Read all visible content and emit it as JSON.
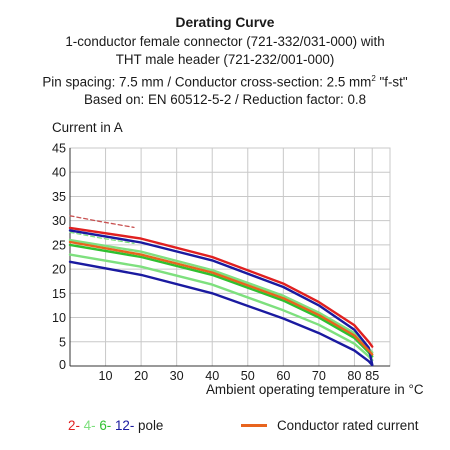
{
  "chart_data": {
    "type": "line",
    "title": "Derating Curve",
    "subtitle": [
      "1-conductor female connector (721-332/031-000) with",
      "THT male header (721-232/001-000)",
      "Pin spacing: 7.5 mm / Conductor cross-section: 2.5 mm",
      "Based on: EN 60512-5-2 / Reduction factor: 0.8"
    ],
    "subtitle_sup": "2",
    "subtitle_suffix": " \"f-st\"",
    "ylabel": "Current in A",
    "xlabel": "Ambient operating temperature in °C",
    "xlim": [
      0,
      90
    ],
    "ylim": [
      0,
      45
    ],
    "xticks": [
      10,
      20,
      30,
      40,
      50,
      60,
      70,
      80,
      85
    ],
    "yticks": [
      5,
      10,
      15,
      20,
      25,
      30,
      35,
      40,
      45
    ],
    "grid": true,
    "colors": {
      "red": "#e02020",
      "light_green": "#7ee07e",
      "green": "#2fc02f",
      "blue": "#1a1aa0",
      "orange": "#e8641e",
      "grid": "#c8c8c8",
      "dashed": "#c85050"
    },
    "series": [
      {
        "pole": "2",
        "color": "red",
        "kind": "solid",
        "x": [
          0,
          20,
          40,
          60,
          70,
          80,
          84,
          85
        ],
        "y": [
          28.5,
          26.3,
          22.5,
          17.0,
          13.2,
          8.4,
          5.0,
          4.0
        ]
      },
      {
        "pole": "2",
        "color": "dashed",
        "kind": "dashed",
        "x": [
          0,
          8,
          18
        ],
        "y": [
          31.0,
          29.9,
          28.6
        ]
      },
      {
        "pole": "4",
        "color": "light_green",
        "kind": "solid",
        "x": [
          0,
          20,
          40,
          60,
          70,
          80,
          84,
          85
        ],
        "y": [
          26.0,
          23.6,
          19.8,
          14.5,
          11.0,
          6.8,
          3.6,
          2.8
        ]
      },
      {
        "pole": "4",
        "color": "light_green",
        "kind": "dashed",
        "x": [
          0,
          8,
          18
        ],
        "y": [
          27.6,
          26.5,
          25.3
        ]
      },
      {
        "pole": "6",
        "color": "green",
        "kind": "solid",
        "x": [
          0,
          20,
          40,
          60,
          70,
          80,
          84,
          85
        ],
        "y": [
          25.0,
          22.5,
          18.8,
          13.5,
          10.0,
          5.8,
          2.8,
          2.0
        ]
      },
      {
        "pole": "6",
        "color": "light_green",
        "kind": "solid",
        "x": [
          0,
          20,
          40,
          60,
          70,
          80,
          84,
          85
        ],
        "y": [
          23.0,
          20.5,
          16.8,
          11.5,
          8.5,
          4.6,
          2.0,
          1.2
        ]
      },
      {
        "pole": "12",
        "color": "blue",
        "kind": "solid",
        "x": [
          0,
          20,
          40,
          60,
          70,
          80,
          84,
          85
        ],
        "y": [
          28.0,
          25.5,
          21.8,
          16.3,
          12.5,
          7.5,
          3.8,
          0.3
        ]
      },
      {
        "pole": "12",
        "color": "blue",
        "kind": "solid",
        "x": [
          0,
          20,
          40,
          60,
          70,
          80,
          84,
          85
        ],
        "y": [
          21.5,
          18.8,
          15.0,
          9.8,
          6.8,
          3.2,
          1.0,
          0.2
        ]
      },
      {
        "pole": "rated",
        "color": "orange",
        "kind": "solid",
        "x": [
          0,
          20,
          40,
          60,
          70,
          80,
          84,
          85
        ],
        "y": [
          25.6,
          23.0,
          19.3,
          14.0,
          10.5,
          6.3,
          3.2,
          2.4
        ]
      }
    ],
    "legend": {
      "poles": [
        "2-",
        "4-",
        "6-",
        "12-"
      ],
      "pole_colors": [
        "red",
        "light_green",
        "green",
        "blue"
      ],
      "pole_word": " pole",
      "rated_label": "Conductor rated current",
      "rated_color": "orange",
      "placement": "bottom"
    }
  }
}
